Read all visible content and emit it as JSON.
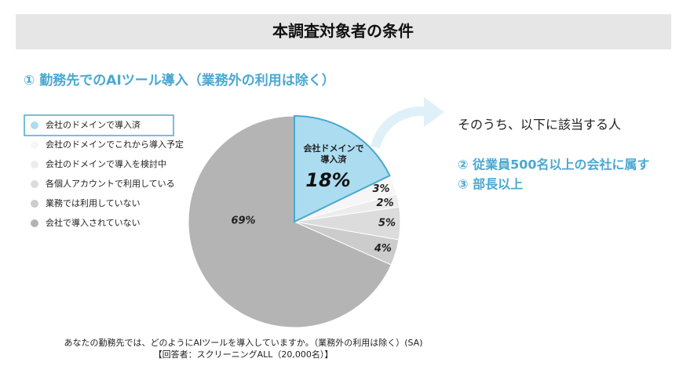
{
  "header": {
    "title": "本調査対象者の条件",
    "subtitle": "① 勤務先でのAIツール導入（業務外の利用は除く）"
  },
  "chart_data": {
    "type": "pie",
    "categories": [
      "会社のドメインで導入済",
      "会社のドメインでこれから導入予定",
      "会社のドメインで導入を検討中",
      "各個人アカウントで利用している",
      "業務では利用していない",
      "会社で導入されていない"
    ],
    "values": [
      18,
      3,
      2,
      5,
      4,
      69
    ],
    "value_labels": [
      "18%",
      "3%",
      "2%",
      "5%",
      "4%",
      "69%"
    ],
    "colors": [
      "#acdcf0",
      "#f6f6f6",
      "#ececec",
      "#dcdcdc",
      "#cccccc",
      "#b4b4b4"
    ],
    "slice_annotation": [
      "会社ドメインで",
      "導入済"
    ]
  },
  "conditions": {
    "intro": "そのうち、以下に該当する人",
    "items": [
      "② 従業員500名以上の会社に属す",
      "③ 部長以上"
    ]
  },
  "footnote": [
    "あなたの勤務先では、どのようにAIツールを導入していますか。（業務外の利用は除く）(SA)",
    "【回答者：スクリーニングALL（20,000名）】"
  ]
}
